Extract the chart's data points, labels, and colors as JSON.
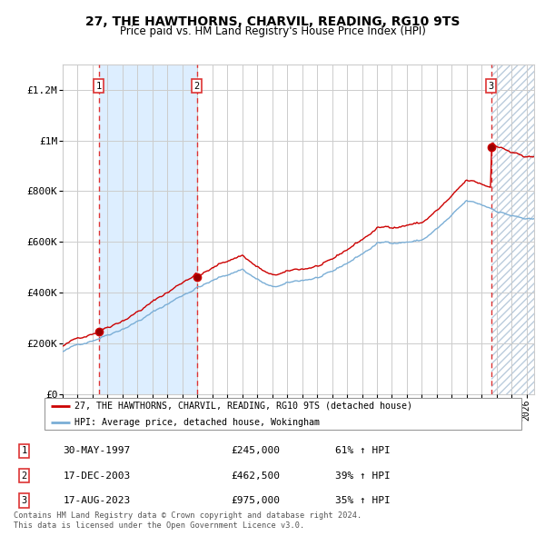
{
  "title": "27, THE HAWTHORNS, CHARVIL, READING, RG10 9TS",
  "subtitle": "Price paid vs. HM Land Registry's House Price Index (HPI)",
  "legend_line1": "27, THE HAWTHORNS, CHARVIL, READING, RG10 9TS (detached house)",
  "legend_line2": "HPI: Average price, detached house, Wokingham",
  "footnote1": "Contains HM Land Registry data © Crown copyright and database right 2024.",
  "footnote2": "This data is licensed under the Open Government Licence v3.0.",
  "table_labels": [
    "30-MAY-1997",
    "17-DEC-2003",
    "17-AUG-2023"
  ],
  "table_prices": [
    "£245,000",
    "£462,500",
    "£975,000"
  ],
  "table_hpi": [
    "61% ↑ HPI",
    "39% ↑ HPI",
    "35% ↑ HPI"
  ],
  "red_line_color": "#cc0000",
  "blue_line_color": "#7aaed6",
  "shading_color": "#ddeeff",
  "hatch_color": "#aabbcc",
  "grid_color": "#cccccc",
  "dashed_line_color": "#dd3333",
  "ylim": [
    0,
    1300000
  ],
  "yticks": [
    0,
    200000,
    400000,
    600000,
    800000,
    1000000,
    1200000
  ],
  "ytick_labels": [
    "£0",
    "£200K",
    "£400K",
    "£600K",
    "£800K",
    "£1M",
    "£1.2M"
  ],
  "xstart": 1995.0,
  "xend": 2026.5,
  "bg_color": "#ffffff"
}
